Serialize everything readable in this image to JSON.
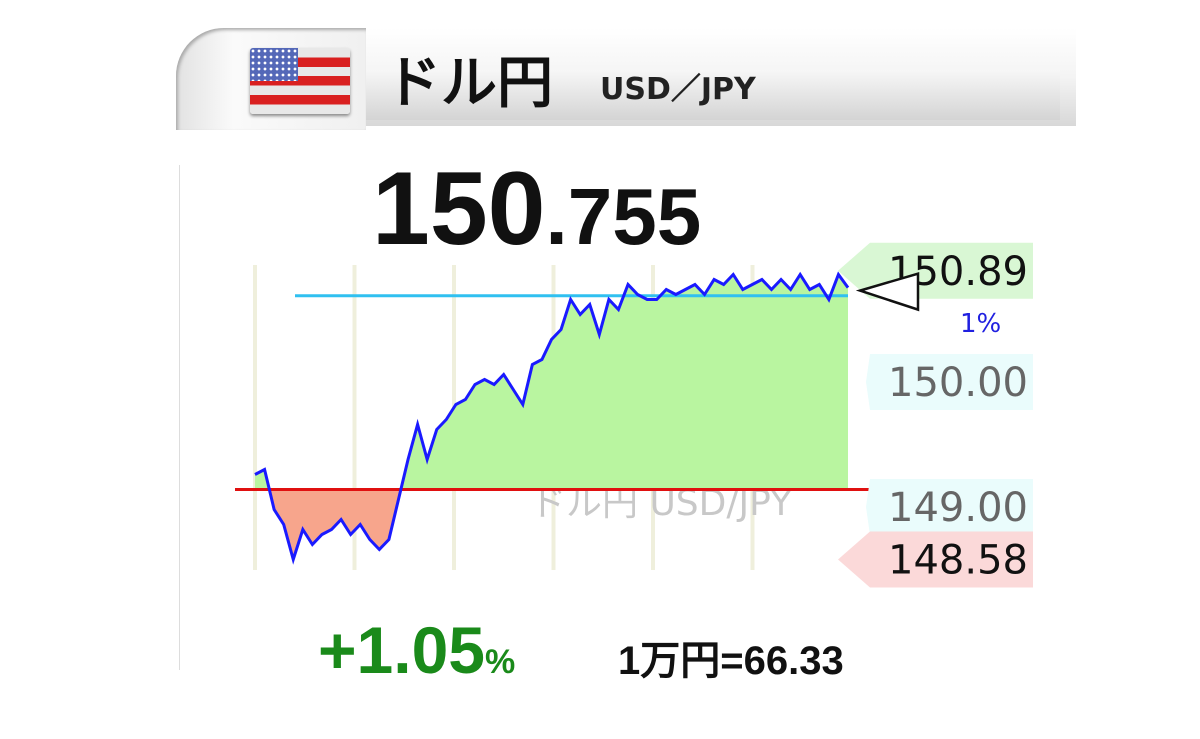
{
  "header": {
    "title": "ドル円",
    "subtitle": "USD／JPY",
    "flag_icon": "us-flag-icon"
  },
  "price": {
    "integer": "150",
    "decimal": ".755"
  },
  "change": {
    "value": "+1.05",
    "unit": "%",
    "color": "#1a8a1a"
  },
  "conversion": "1万円=66.33",
  "chart_data": {
    "type": "area",
    "watermark": "ドル円 USD/JPY",
    "ylim": [
      148.5,
      150.95
    ],
    "baseline": 149.14,
    "reference_line": {
      "value": 150.69,
      "label": "1%"
    },
    "y_labels": [
      {
        "text": "150.89",
        "value": 150.89,
        "kind": "high"
      },
      {
        "text": "150.00",
        "value": 150.0,
        "kind": "tick"
      },
      {
        "text": "149.00",
        "value": 149.0,
        "kind": "tick"
      },
      {
        "text": "148.58",
        "value": 148.58,
        "kind": "low"
      }
    ],
    "current": 150.755,
    "vertical_gridlines": 6,
    "values": [
      149.26,
      149.3,
      148.98,
      148.86,
      148.58,
      148.82,
      148.7,
      148.78,
      148.82,
      148.9,
      148.78,
      148.86,
      148.74,
      148.66,
      148.74,
      149.06,
      149.38,
      149.66,
      149.38,
      149.62,
      149.7,
      149.82,
      149.86,
      149.98,
      150.02,
      149.98,
      150.06,
      149.94,
      149.82,
      150.14,
      150.18,
      150.34,
      150.42,
      150.66,
      150.54,
      150.62,
      150.38,
      150.66,
      150.58,
      150.78,
      150.7,
      150.66,
      150.66,
      150.74,
      150.7,
      150.74,
      150.78,
      150.7,
      150.82,
      150.78,
      150.86,
      150.74,
      150.78,
      150.82,
      150.74,
      150.82,
      150.74,
      150.86,
      150.74,
      150.78,
      150.66,
      150.86,
      150.755
    ],
    "colors": {
      "line": "#1a1aff",
      "above": "#b9f5a0",
      "below": "#f7a58c",
      "baseline": "#e01010",
      "reference": "#30c0f0",
      "high_label_bg": "#d9f7d4",
      "low_label_bg": "#fbd9d9",
      "tick_label_bg": "#eafcfc"
    }
  }
}
